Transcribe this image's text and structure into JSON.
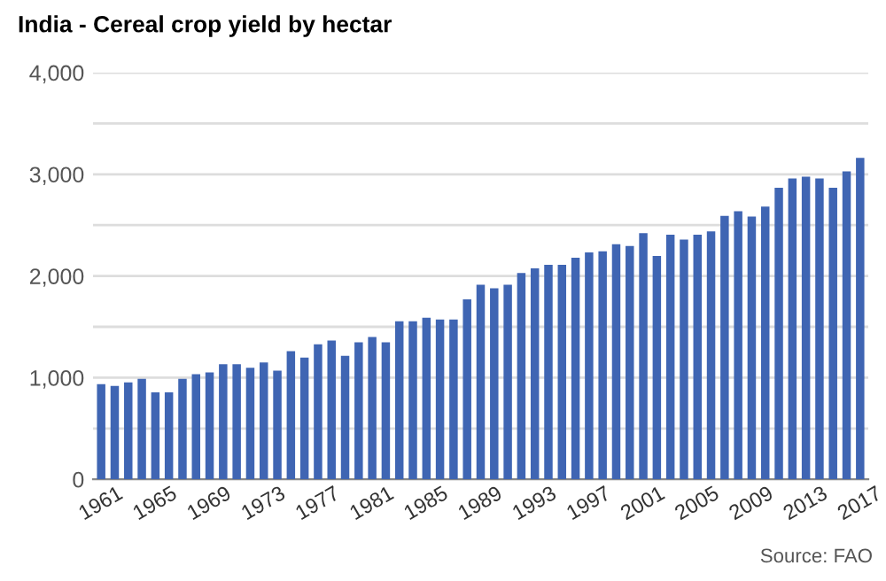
{
  "chart_data": {
    "type": "bar",
    "title": "India - Cereal crop yield by hectar",
    "categories": [
      "1961",
      null,
      null,
      null,
      "1965",
      null,
      null,
      null,
      "1969",
      null,
      null,
      null,
      "1973",
      null,
      null,
      null,
      "1977",
      null,
      null,
      null,
      "1981",
      null,
      null,
      null,
      "1985",
      null,
      null,
      null,
      "1989",
      null,
      null,
      null,
      "1993",
      null,
      null,
      null,
      "1997",
      null,
      null,
      null,
      "2001",
      null,
      null,
      null,
      "2005",
      null,
      null,
      null,
      "2009",
      null,
      null,
      null,
      "2013",
      null,
      null,
      null,
      "2017"
    ],
    "values": [
      936,
      919,
      954,
      988,
      855,
      855,
      988,
      1035,
      1052,
      1133,
      1133,
      1098,
      1150,
      1069,
      1260,
      1197,
      1329,
      1364,
      1214,
      1347,
      1399,
      1347,
      1555,
      1555,
      1590,
      1572,
      1572,
      1769,
      1913,
      1879,
      1913,
      2029,
      2075,
      2110,
      2110,
      2179,
      2231,
      2243,
      2312,
      2295,
      2422,
      2197,
      2405,
      2358,
      2405,
      2439,
      2590,
      2636,
      2584,
      2682,
      2867,
      2960,
      2977,
      2960,
      2867,
      3029,
      3162
    ],
    "color": "#3f65b3",
    "ylim": [
      0,
      4000
    ],
    "yticks": [
      0,
      {
        "value": 500,
        "label": null
      },
      {
        "value": 1000,
        "label": "1,000"
      },
      {
        "value": 1500,
        "label": null
      },
      {
        "value": 2000,
        "label": "2,000"
      },
      {
        "value": 2500,
        "label": null
      },
      {
        "value": 3000,
        "label": "3,000"
      },
      {
        "value": 3500,
        "label": null
      },
      {
        "value": 4000,
        "label": "4,000"
      }
    ],
    "grid": "y",
    "annotations": [
      "Source: FAO"
    ]
  }
}
